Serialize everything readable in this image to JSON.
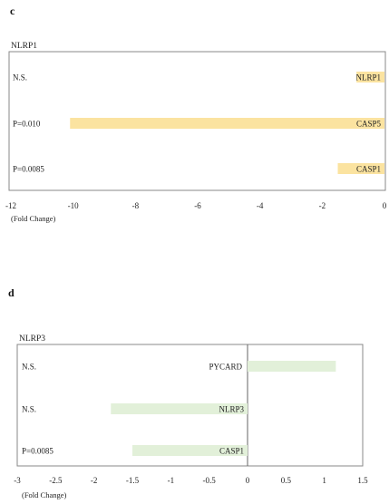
{
  "chart_data": [
    {
      "panel_label": "c",
      "type": "bar",
      "orientation": "horizontal",
      "title": "NLRP1",
      "xlabel": "(Fold Change)",
      "xlim": [
        -12,
        0
      ],
      "xticks": [
        "-12",
        "-10",
        "-8",
        "-6",
        "-4",
        "-2",
        "0"
      ],
      "bar_color": "#fbe3a0",
      "categories": [
        "NLRP1",
        "CASP5",
        "CASP1"
      ],
      "values": [
        -0.9,
        -10.1,
        -1.5
      ],
      "significance": [
        "N.S.",
        "P=0.010",
        "P=0.0085"
      ]
    },
    {
      "panel_label": "d",
      "type": "bar",
      "orientation": "horizontal",
      "title": "NLRP3",
      "xlabel": "(Fold Change)",
      "xlim": [
        -3,
        1.5
      ],
      "xticks": [
        "-3",
        "-2.5",
        "-2",
        "-1.5",
        "-1",
        "-0.5",
        "0",
        "0.5",
        "1",
        "1.5"
      ],
      "bar_color": "#e2f0d9",
      "categories": [
        "PYCARD",
        "NLRP3",
        "CASP1"
      ],
      "values": [
        1.15,
        -1.78,
        -1.5
      ],
      "significance": [
        "N.S.",
        "N.S.",
        "P=0.0085"
      ]
    }
  ]
}
